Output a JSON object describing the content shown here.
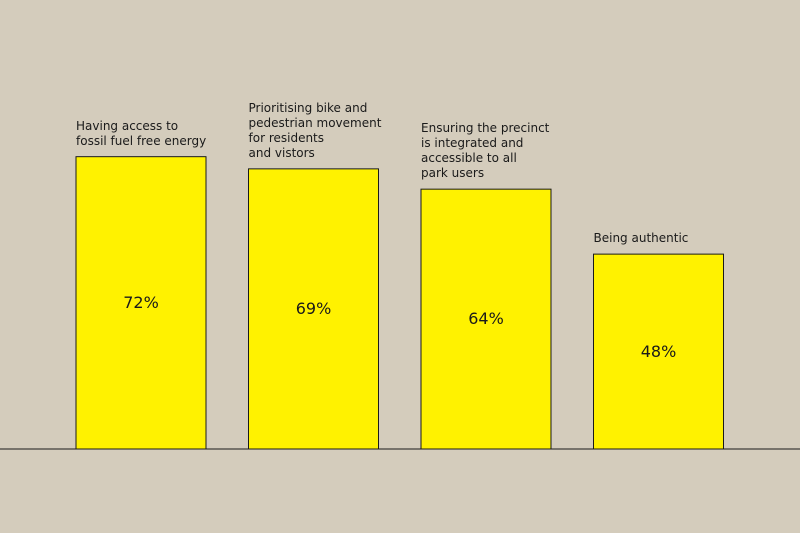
{
  "chart_data": {
    "type": "bar",
    "categories": [
      "Having access to\nfossil fuel free energy",
      "Prioritising bike and\npedestrian movement\nfor residents\nand vistors",
      "Ensuring the precinct\nis integrated and\naccessible to all\npark users",
      "Being authentic"
    ],
    "values": [
      72,
      69,
      64,
      48
    ],
    "value_labels": [
      "72%",
      "69%",
      "64%",
      "48%"
    ],
    "ylim": [
      0,
      100
    ],
    "grid": false,
    "legend": "none",
    "bar_color": "#fff200",
    "bar_outline": "#1a1a1a",
    "baseline_color": "#1a1a1a",
    "background": "#d4ccbc"
  }
}
